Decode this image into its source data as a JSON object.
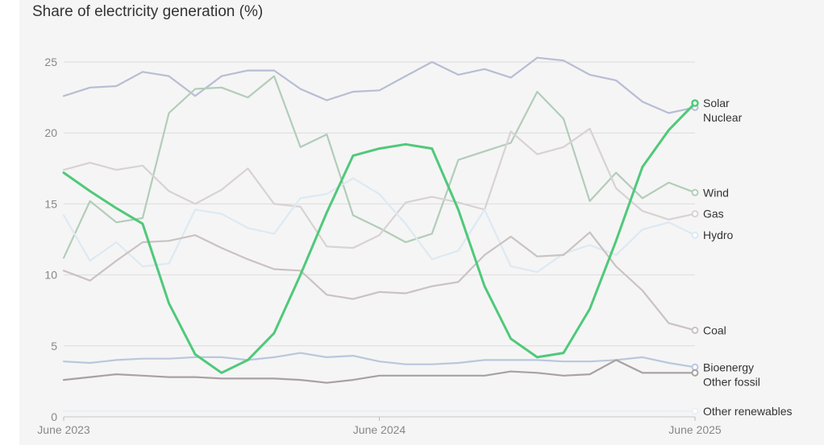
{
  "chart_data": {
    "type": "line",
    "title": "Share of electricity generation (%)",
    "ylim": [
      0,
      25
    ],
    "yticks": [
      0,
      5,
      10,
      15,
      20,
      25
    ],
    "x": [
      "2023-06",
      "2023-07",
      "2023-08",
      "2023-09",
      "2023-10",
      "2023-11",
      "2023-12",
      "2024-01",
      "2024-02",
      "2024-03",
      "2024-04",
      "2024-05",
      "2024-06",
      "2024-07",
      "2024-08",
      "2024-09",
      "2024-10",
      "2024-11",
      "2024-12",
      "2025-01",
      "2025-02",
      "2025-03",
      "2025-04",
      "2025-05",
      "2025-06"
    ],
    "xtick_labels": [
      {
        "x": "2023-06",
        "label": "June 2023"
      },
      {
        "x": "2024-06",
        "label": "June 2024"
      },
      {
        "x": "2025-06",
        "label": "June 2025"
      }
    ],
    "grid": true,
    "legend": "end-of-line labels",
    "series": [
      {
        "name": "Nuclear",
        "color": "#b8bdd4",
        "values": [
          22.6,
          23.2,
          23.3,
          24.3,
          24.0,
          22.6,
          24.0,
          24.4,
          24.4,
          23.1,
          22.3,
          22.9,
          23.0,
          24.0,
          25.0,
          24.1,
          24.5,
          23.9,
          25.3,
          25.1,
          24.1,
          23.7,
          22.2,
          21.4,
          21.8
        ]
      },
      {
        "name": "Wind",
        "color": "#b2cdb9",
        "values": [
          11.2,
          15.2,
          13.7,
          14.0,
          21.4,
          23.1,
          23.2,
          22.5,
          24.0,
          19.0,
          19.9,
          14.2,
          13.3,
          12.3,
          12.9,
          18.1,
          18.7,
          19.3,
          22.9,
          21.0,
          15.2,
          17.2,
          15.4,
          16.5,
          15.8
        ]
      },
      {
        "name": "Gas",
        "color": "#d9d2d2",
        "values": [
          17.4,
          17.9,
          17.4,
          17.7,
          15.9,
          15.0,
          16.0,
          17.5,
          15.0,
          14.8,
          12.0,
          11.9,
          12.8,
          15.1,
          15.5,
          15.1,
          14.6,
          20.1,
          18.5,
          19.0,
          20.3,
          16.1,
          14.5,
          13.9,
          14.3
        ]
      },
      {
        "name": "Hydro",
        "color": "#dde9f2",
        "values": [
          14.2,
          11.0,
          12.3,
          10.6,
          10.8,
          14.6,
          14.3,
          13.3,
          12.9,
          15.4,
          15.7,
          16.8,
          15.7,
          13.6,
          11.1,
          11.7,
          14.6,
          10.6,
          10.2,
          11.5,
          12.1,
          11.4,
          13.2,
          13.7,
          12.8
        ]
      },
      {
        "name": "Coal",
        "color": "#cbc2c2",
        "values": [
          10.3,
          9.6,
          11.0,
          12.3,
          12.4,
          12.8,
          11.9,
          11.1,
          10.4,
          10.3,
          8.6,
          8.3,
          8.8,
          8.7,
          9.2,
          9.5,
          11.4,
          12.7,
          11.3,
          11.4,
          13.0,
          10.6,
          8.9,
          6.6,
          6.1
        ]
      },
      {
        "name": "Bioenergy",
        "color": "#b9c7dd",
        "values": [
          3.9,
          3.8,
          4.0,
          4.1,
          4.1,
          4.2,
          4.2,
          4.0,
          4.2,
          4.5,
          4.2,
          4.3,
          3.9,
          3.7,
          3.7,
          3.8,
          4.0,
          4.0,
          4.0,
          3.9,
          3.9,
          4.0,
          4.2,
          3.8,
          3.5
        ]
      },
      {
        "name": "Other fossil",
        "color": "#a9a1a1",
        "values": [
          2.6,
          2.8,
          3.0,
          2.9,
          2.8,
          2.8,
          2.7,
          2.7,
          2.7,
          2.6,
          2.4,
          2.6,
          2.9,
          2.9,
          2.9,
          2.9,
          2.9,
          3.2,
          3.1,
          2.9,
          3.0,
          4.0,
          3.1,
          3.1,
          3.1
        ]
      },
      {
        "name": "Other renewables",
        "color": "#e8f1f6",
        "values": [
          0.4,
          0.4,
          0.4,
          0.4,
          0.4,
          0.4,
          0.4,
          0.4,
          0.4,
          0.4,
          0.4,
          0.4,
          0.4,
          0.4,
          0.4,
          0.4,
          0.4,
          0.4,
          0.4,
          0.4,
          0.4,
          0.4,
          0.4,
          0.4,
          0.4
        ]
      },
      {
        "name": "Solar",
        "color": "#4fc97a",
        "highlight": true,
        "values": [
          17.2,
          15.9,
          14.7,
          13.6,
          8.0,
          4.4,
          3.1,
          4.0,
          5.9,
          10.0,
          14.4,
          18.4,
          18.9,
          19.2,
          18.9,
          14.6,
          9.2,
          5.5,
          4.2,
          4.5,
          7.6,
          12.4,
          17.6,
          20.2,
          22.1
        ]
      }
    ]
  }
}
